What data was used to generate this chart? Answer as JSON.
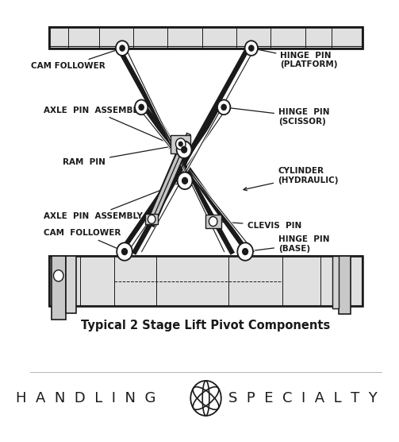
{
  "background_color": "#ffffff",
  "line_color": "#1a1a1a",
  "text_color": "#1a1a1a",
  "caption": "Typical 2 Stage Lift Pivot Components",
  "caption_fontsize": 10.5,
  "brand_text_left": "H  A  N  D  L  I  N  G",
  "brand_text_right": "S  P  E  C  I  A  L  T  Y",
  "brand_fontsize": 13,
  "fig_width": 5.03,
  "fig_height": 5.56,
  "dpi": 100
}
